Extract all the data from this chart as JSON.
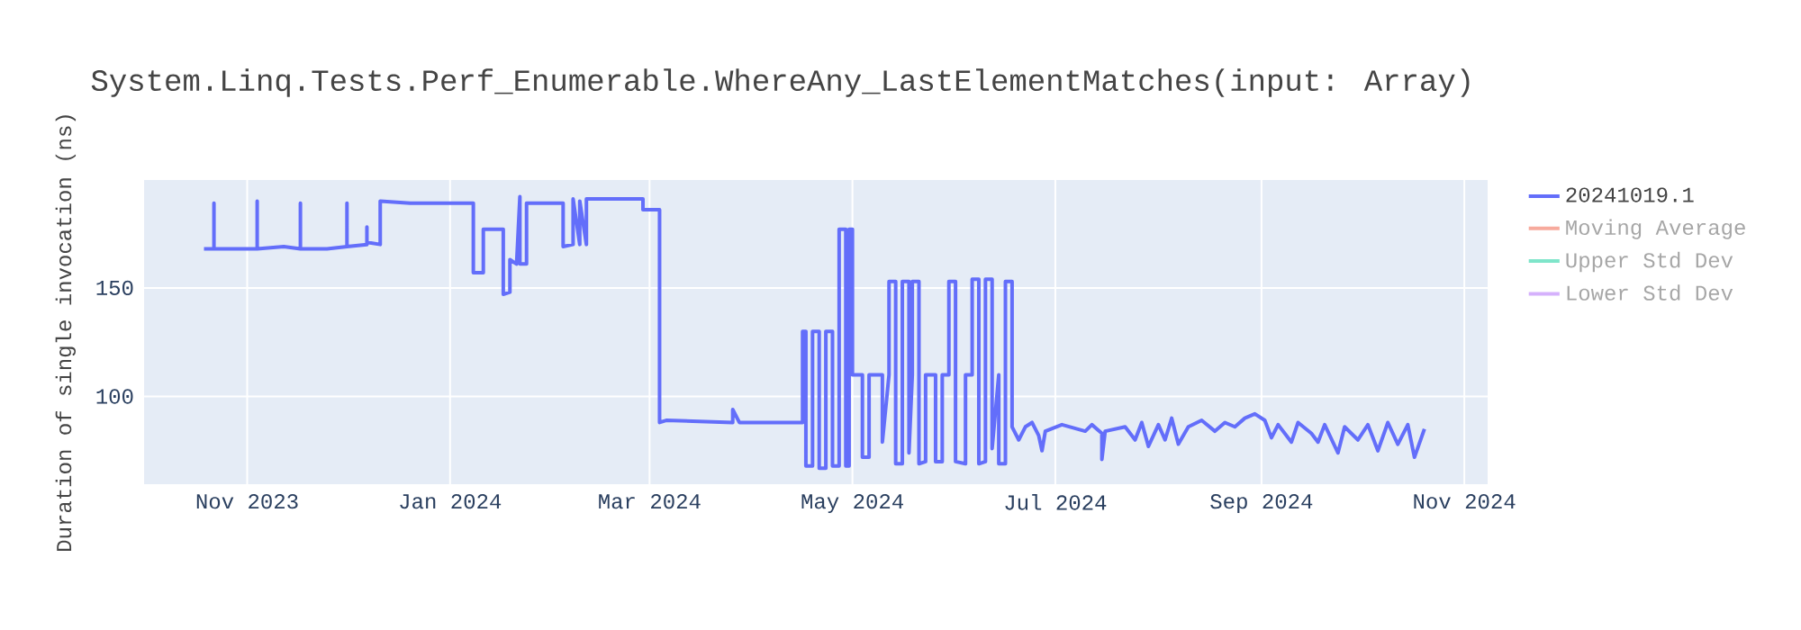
{
  "chart_data": {
    "type": "line",
    "title": "System.Linq.Tests.Perf_Enumerable.WhereAny_LastElementMatches(input: Array)",
    "ylabel": "Duration of single invocation (ns)",
    "xlim": [
      "2023-10-01",
      "2024-11-08"
    ],
    "ylim": [
      59.6,
      199.7
    ],
    "xticks": [
      {
        "value": "2023-11-01",
        "label": "Nov 2023"
      },
      {
        "value": "2024-01-01",
        "label": "Jan 2024"
      },
      {
        "value": "2024-03-01",
        "label": "Mar 2024"
      },
      {
        "value": "2024-05-01",
        "label": "May 2024"
      },
      {
        "value": "2024-07-01",
        "label": "Jul 2024"
      },
      {
        "value": "2024-09-01",
        "label": "Sep 2024"
      },
      {
        "value": "2024-11-01",
        "label": "Nov 2024"
      }
    ],
    "yticks": [
      100,
      150
    ],
    "grid": true,
    "legend": "top right",
    "marker": "none",
    "line_style": "solid",
    "series": [
      {
        "name": "20241019.1",
        "color": "#636efa",
        "x": [
          "2023-10-19",
          "2023-10-22",
          "2023-10-22",
          "2023-10-22",
          "2023-11-04",
          "2023-11-04",
          "2023-11-04",
          "2023-11-12",
          "2023-11-17",
          "2023-11-17",
          "2023-11-17",
          "2023-11-25",
          "2023-12-01",
          "2023-12-01",
          "2023-12-01",
          "2023-12-07",
          "2023-12-07",
          "2023-12-07",
          "2023-12-11",
          "2023-12-11",
          "2023-12-20",
          "2024-01-08",
          "2024-01-08",
          "2024-01-11",
          "2024-01-11",
          "2024-01-17",
          "2024-01-17",
          "2024-01-19",
          "2024-01-19",
          "2024-01-21",
          "2024-01-22",
          "2024-01-22",
          "2024-01-24",
          "2024-01-24",
          "2024-02-04",
          "2024-02-04",
          "2024-02-07",
          "2024-02-07",
          "2024-02-09",
          "2024-02-09",
          "2024-02-11",
          "2024-02-11",
          "2024-02-28",
          "2024-02-28",
          "2024-03-04",
          "2024-03-04",
          "2024-03-06",
          "2024-03-26",
          "2024-03-26",
          "2024-03-28",
          "2024-04-16",
          "2024-04-16",
          "2024-04-17",
          "2024-04-17",
          "2024-04-19",
          "2024-04-19",
          "2024-04-21",
          "2024-04-21",
          "2024-04-23",
          "2024-04-23",
          "2024-04-25",
          "2024-04-25",
          "2024-04-27",
          "2024-04-27",
          "2024-04-29",
          "2024-04-29",
          "2024-04-30",
          "2024-04-30",
          "2024-05-01",
          "2024-05-01",
          "2024-05-04",
          "2024-05-04",
          "2024-05-06",
          "2024-05-06",
          "2024-05-10",
          "2024-05-10",
          "2024-05-12",
          "2024-05-12",
          "2024-05-14",
          "2024-05-14",
          "2024-05-16",
          "2024-05-16",
          "2024-05-18",
          "2024-05-18",
          "2024-05-19",
          "2024-05-19",
          "2024-05-21",
          "2024-05-21",
          "2024-05-23",
          "2024-05-23",
          "2024-05-26",
          "2024-05-26",
          "2024-05-28",
          "2024-05-28",
          "2024-05-30",
          "2024-05-30",
          "2024-06-01",
          "2024-06-01",
          "2024-06-04",
          "2024-06-04",
          "2024-06-06",
          "2024-06-06",
          "2024-06-08",
          "2024-06-08",
          "2024-06-10",
          "2024-06-10",
          "2024-06-12",
          "2024-06-12",
          "2024-06-14",
          "2024-06-14",
          "2024-06-16",
          "2024-06-16",
          "2024-06-18",
          "2024-06-18",
          "2024-06-20",
          "2024-06-22",
          "2024-06-24",
          "2024-06-26",
          "2024-06-27",
          "2024-06-28",
          "2024-07-03",
          "2024-07-10",
          "2024-07-12",
          "2024-07-15",
          "2024-07-15",
          "2024-07-16",
          "2024-07-22",
          "2024-07-25",
          "2024-07-27",
          "2024-07-29",
          "2024-08-01",
          "2024-08-03",
          "2024-08-05",
          "2024-08-07",
          "2024-08-10",
          "2024-08-14",
          "2024-08-18",
          "2024-08-21",
          "2024-08-24",
          "2024-08-27",
          "2024-08-30",
          "2024-09-02",
          "2024-09-04",
          "2024-09-06",
          "2024-09-10",
          "2024-09-12",
          "2024-09-16",
          "2024-09-18",
          "2024-09-20",
          "2024-09-24",
          "2024-09-26",
          "2024-09-30",
          "2024-10-03",
          "2024-10-06",
          "2024-10-09",
          "2024-10-12",
          "2024-10-15",
          "2024-10-17",
          "2024-10-20"
        ],
        "values": [
          168,
          168,
          189,
          168,
          168,
          190,
          168,
          169,
          168,
          189,
          168,
          168,
          169,
          189,
          169,
          170,
          178,
          171,
          170,
          190,
          189,
          189,
          157,
          157,
          177,
          177,
          147,
          148,
          163,
          161,
          192,
          161,
          161,
          189,
          189,
          169,
          170,
          191,
          170,
          190,
          170,
          191,
          191,
          186,
          186,
          88,
          89,
          88,
          94,
          88,
          88,
          130,
          130,
          68,
          68,
          130,
          130,
          67,
          67,
          130,
          130,
          68,
          68,
          177,
          177,
          68,
          68,
          177,
          177,
          110,
          110,
          72,
          72,
          110,
          110,
          79,
          110,
          153,
          153,
          69,
          69,
          153,
          153,
          74,
          110,
          153,
          153,
          69,
          70,
          110,
          110,
          70,
          70,
          110,
          110,
          153,
          153,
          70,
          69,
          110,
          110,
          154,
          154,
          69,
          70,
          154,
          154,
          76,
          110,
          69,
          69,
          153,
          153,
          86,
          80,
          86,
          88,
          82,
          75,
          84,
          87,
          84,
          87,
          83,
          71,
          84,
          86,
          80,
          88,
          77,
          87,
          80,
          90,
          78,
          86,
          89,
          84,
          88,
          86,
          90,
          92,
          89,
          81,
          87,
          79,
          88,
          83,
          79,
          87,
          74,
          86,
          80,
          87,
          75,
          88,
          78,
          87,
          72,
          85
        ]
      },
      {
        "name": "Moving Average",
        "color": "#f7aa9d"
      },
      {
        "name": "Upper Std Dev",
        "color": "#7fe5ca"
      },
      {
        "name": "Lower Std Dev",
        "color": "#d5b1fc"
      }
    ]
  }
}
